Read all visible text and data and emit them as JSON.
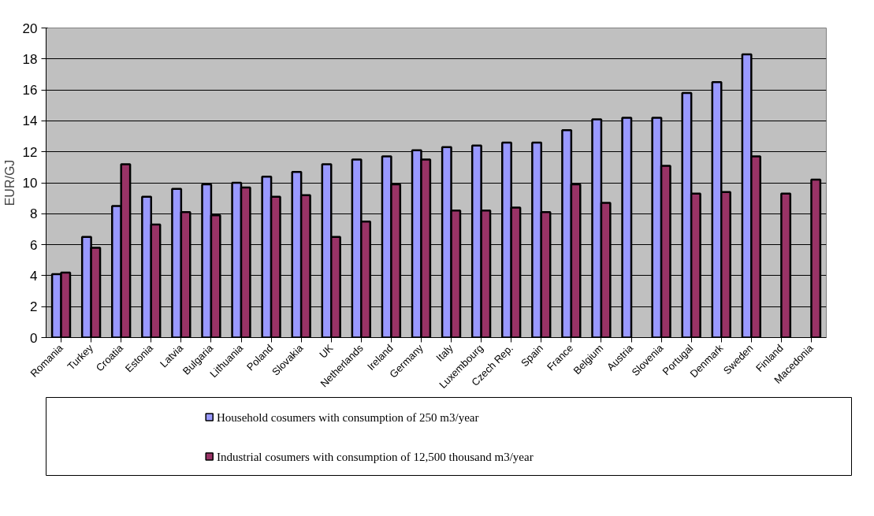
{
  "chart_data": {
    "type": "bar",
    "ylabel": "EUR/GJ",
    "categories": [
      "Romania",
      "Turkey",
      "Croatia",
      "Estonia",
      "Latvia",
      "Bulgaria",
      "Lithuania",
      "Poland",
      "Slovakia",
      "UK",
      "Netherlands",
      "Ireland",
      "Germany",
      "Italy",
      "Luxembourg",
      "Czech Rep.",
      "Spain",
      "France",
      "Belgium",
      "Austria",
      "Slovenia",
      "Portugal",
      "Denmark",
      "Sweden",
      "Finland",
      "Macedonia"
    ],
    "series": [
      {
        "name": "Household cosumers with consumption of 250 m3/year",
        "color": "#9999ff",
        "values": [
          4.1,
          6.5,
          8.5,
          9.1,
          9.6,
          9.9,
          10.0,
          10.4,
          10.7,
          11.2,
          11.5,
          11.7,
          12.1,
          12.3,
          12.4,
          12.6,
          12.6,
          13.4,
          14.1,
          14.2,
          14.2,
          15.8,
          16.5,
          18.3,
          null,
          null
        ]
      },
      {
        "name": "Industrial cosumers with consumption of 12,500 thousand m3/year",
        "color": "#993366",
        "values": [
          4.2,
          5.8,
          11.2,
          7.3,
          8.1,
          7.9,
          9.7,
          9.1,
          9.2,
          6.5,
          7.5,
          9.9,
          11.5,
          8.2,
          8.2,
          8.4,
          8.1,
          9.9,
          8.7,
          null,
          11.1,
          9.3,
          9.4,
          11.7,
          9.3,
          10.2
        ]
      }
    ],
    "ylim": [
      0,
      20
    ],
    "yticks": [
      0,
      2,
      4,
      6,
      8,
      10,
      12,
      14,
      16,
      18,
      20
    ],
    "grid": "y",
    "legend": "bottom"
  }
}
